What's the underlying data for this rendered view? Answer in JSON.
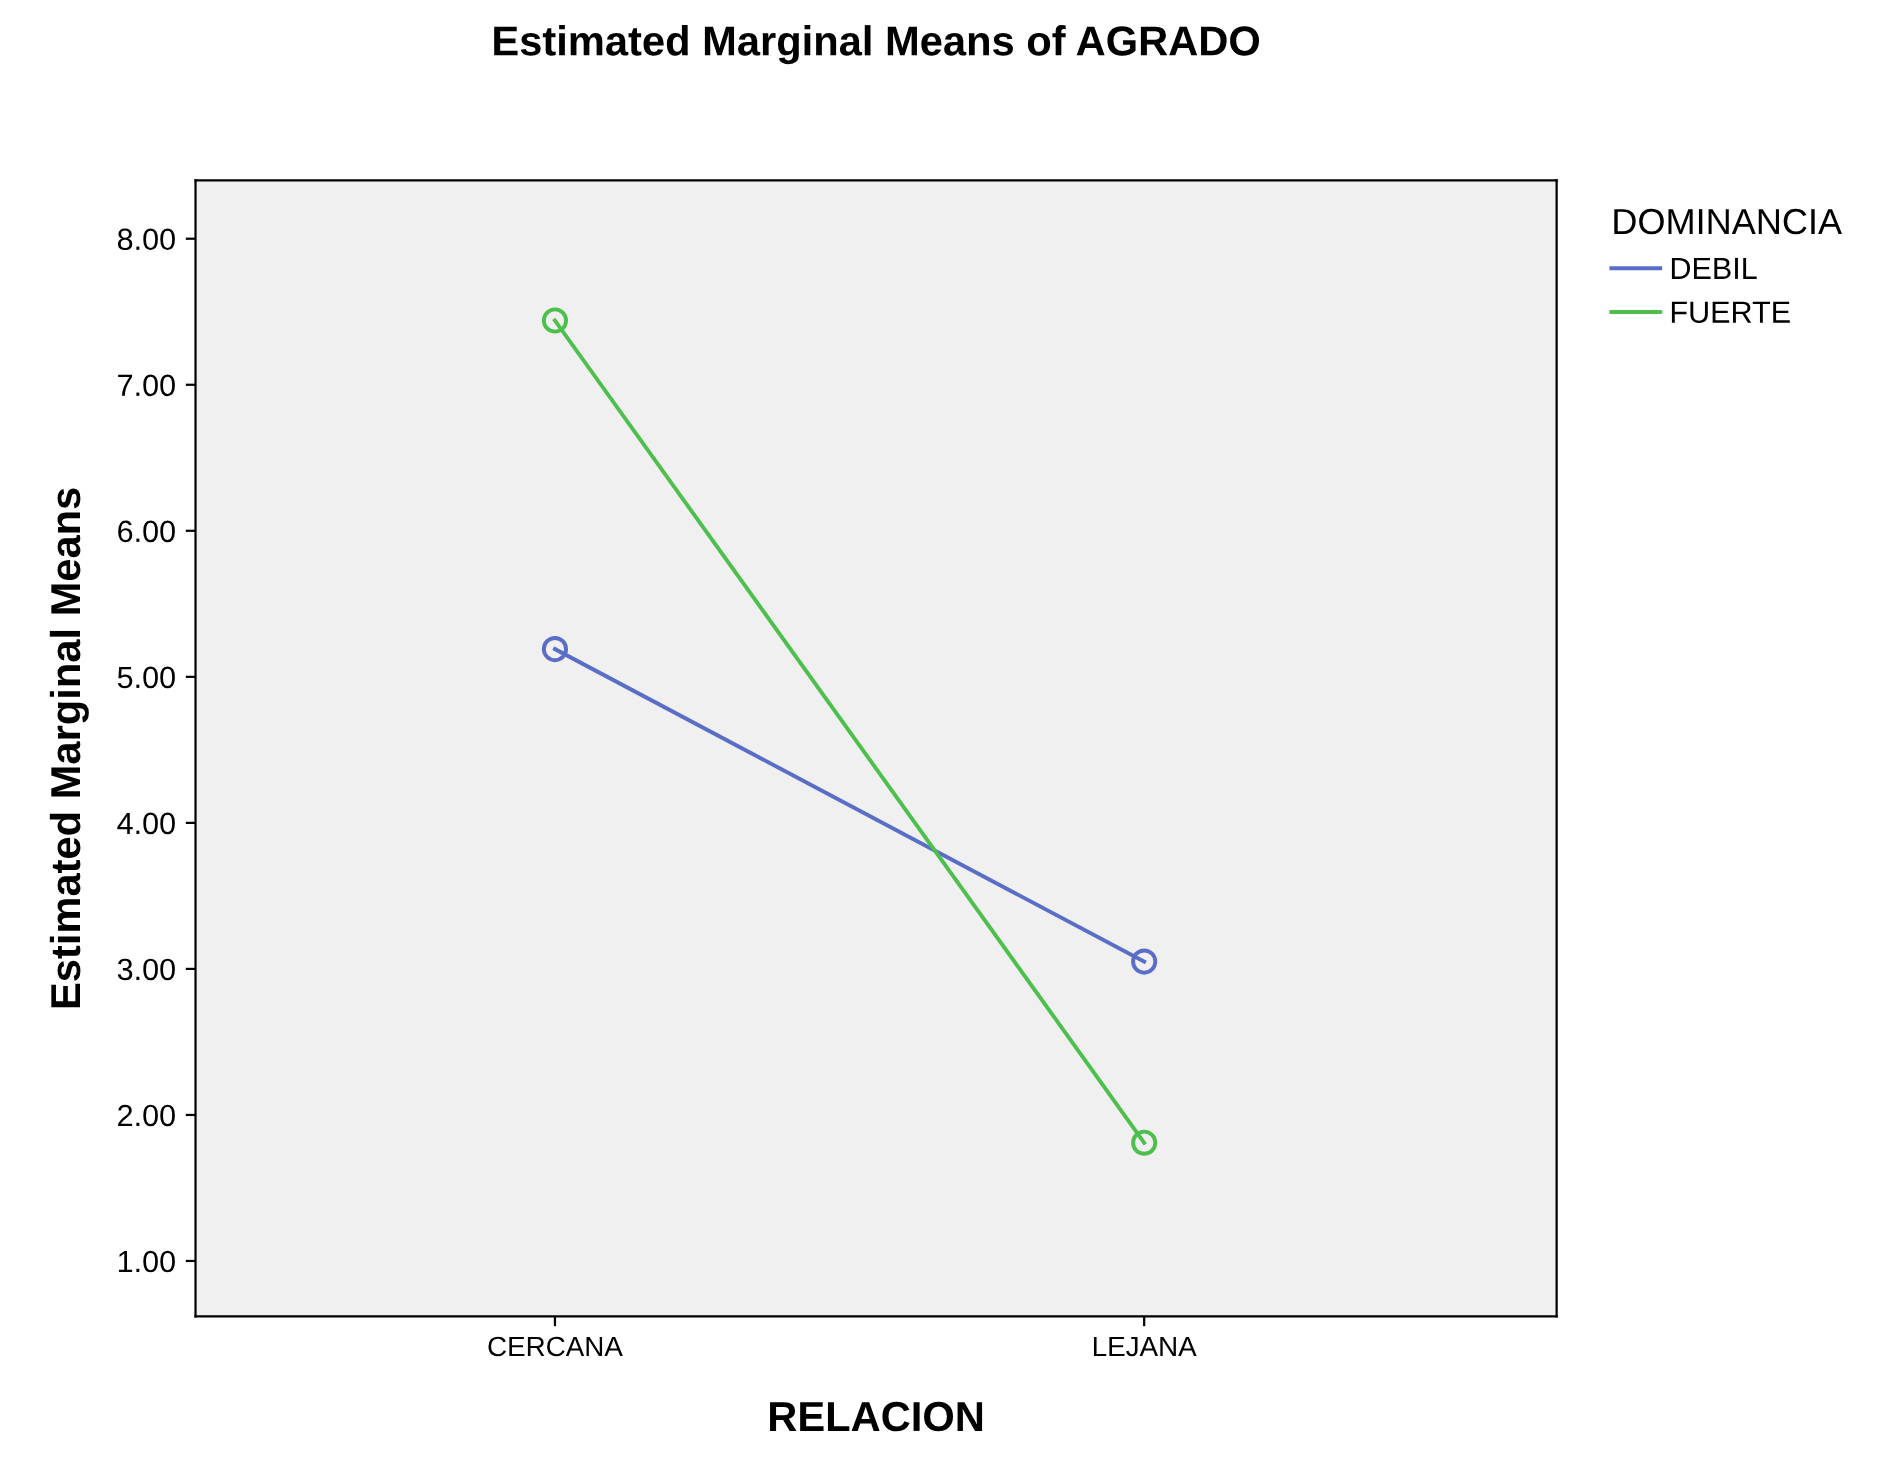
{
  "chart_data": {
    "type": "line",
    "title": "Estimated Marginal Means of AGRADO",
    "xlabel": "RELACION",
    "ylabel": "Estimated Marginal Means",
    "legend_title": "DOMINANCIA",
    "categories": [
      "CERCANA",
      "LEJANA"
    ],
    "series": [
      {
        "name": "DEBIL",
        "color": "#5a6ec8",
        "values": [
          5.19,
          3.05
        ]
      },
      {
        "name": "FUERTE",
        "color": "#4dbf4d",
        "values": [
          7.44,
          1.81
        ]
      }
    ],
    "ylim": [
      0.62,
      8.4
    ],
    "yticks": [
      {
        "value": 1,
        "label": "1.00"
      },
      {
        "value": 2,
        "label": "2.00"
      },
      {
        "value": 3,
        "label": "3.00"
      },
      {
        "value": 4,
        "label": "4.00"
      },
      {
        "value": 5,
        "label": "5.00"
      },
      {
        "value": 6,
        "label": "6.00"
      },
      {
        "value": 7,
        "label": "7.00"
      },
      {
        "value": 8,
        "label": "8.00"
      }
    ],
    "marker": "circle",
    "line_style": "solid",
    "legend": "top right",
    "grid": false
  }
}
